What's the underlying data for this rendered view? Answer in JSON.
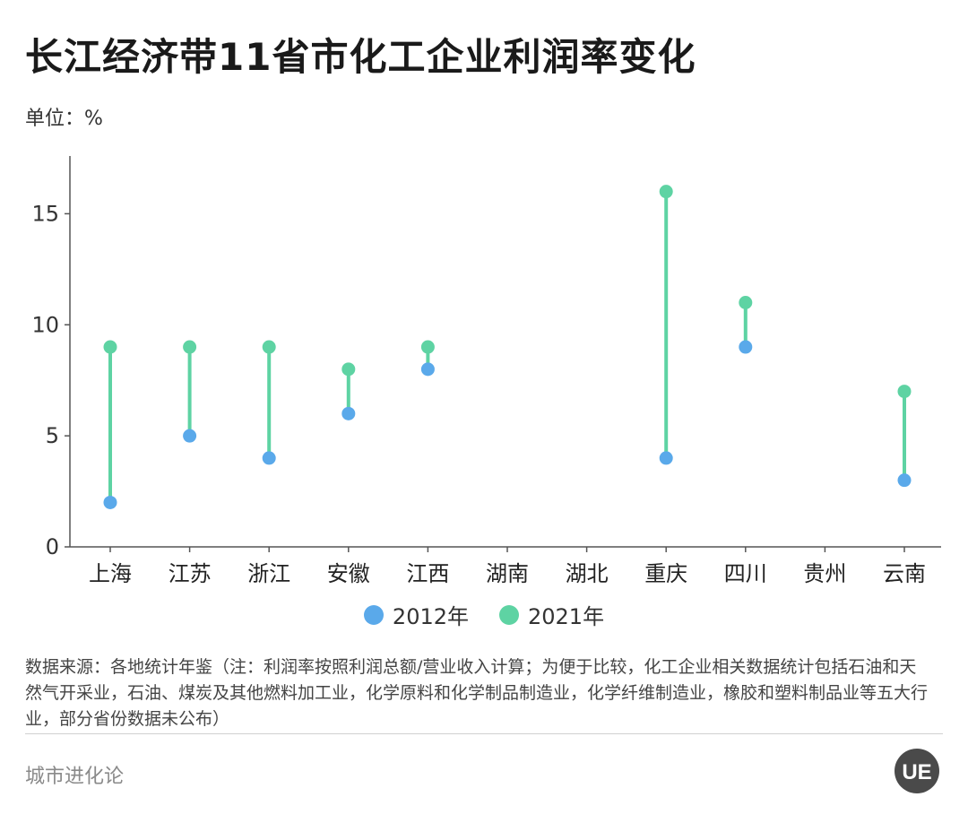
{
  "title": "长江经济带11省市化工企业利润率变化",
  "unit_label": "单位：%",
  "legend": [
    {
      "label": "2012年",
      "color": "#5aa9ea"
    },
    {
      "label": "2021年",
      "color": "#5ed3a3"
    }
  ],
  "source_note": "数据来源：各地统计年鉴（注：利润率按照利润总额/营业收入计算；为便于比较，化工企业相关数据统计包括石油和天然气开采业，石油、煤炭及其他燃料加工业，化学原料和化学制品制造业，化学纤维制造业，橡胶和塑料制品业等五大行业，部分省份数据未公布）",
  "brand": "城市进化论",
  "logo_text": "UE",
  "logo_icon": "ue-logo-icon",
  "chart_data": {
    "type": "dumbbell",
    "categories": [
      "上海",
      "江苏",
      "浙江",
      "安徽",
      "江西",
      "湖南",
      "湖北",
      "重庆",
      "四川",
      "贵州",
      "云南"
    ],
    "series": [
      {
        "name": "2012年",
        "color": "#5aa9ea",
        "values": [
          2,
          5,
          4,
          6,
          8,
          null,
          null,
          4,
          9,
          null,
          3
        ]
      },
      {
        "name": "2021年",
        "color": "#5ed3a3",
        "values": [
          9,
          9,
          9,
          8,
          9,
          null,
          null,
          16,
          11,
          null,
          7
        ]
      }
    ],
    "connector_color": "#5ed3a3",
    "ylim": [
      0,
      17.6
    ],
    "yticks": [
      0,
      5,
      10,
      15
    ],
    "grid": false
  }
}
